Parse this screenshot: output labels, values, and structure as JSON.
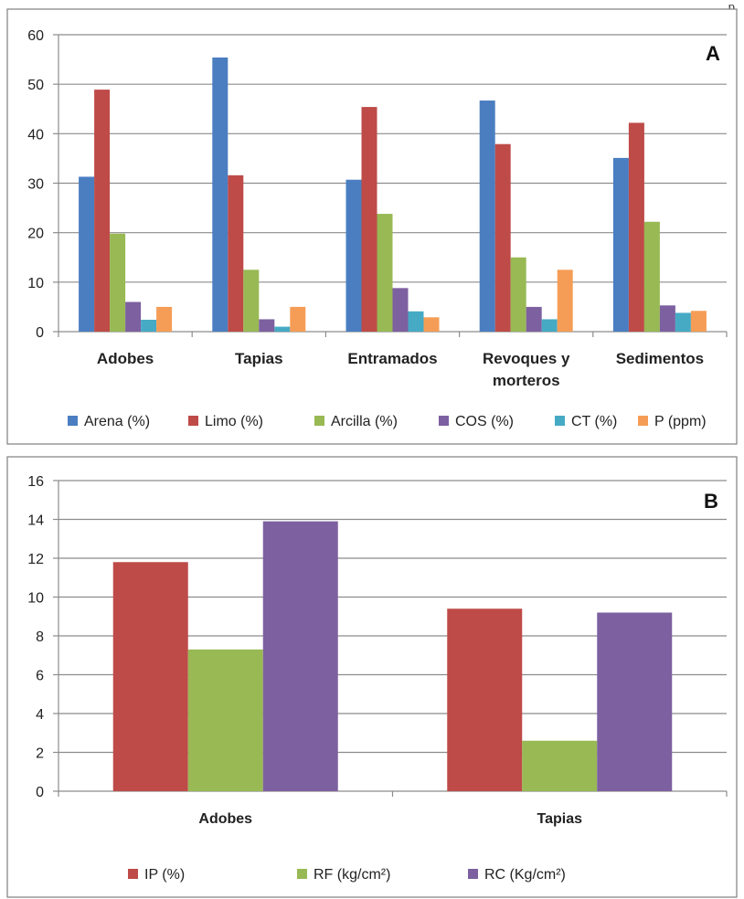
{
  "page_fragment": "p",
  "chart_data": [
    {
      "type": "bar",
      "panel_label": "A",
      "categories": [
        "Adobes",
        "Tapias",
        "Entramados",
        "Revoques y morteros",
        "Sedimentos"
      ],
      "category_lines": [
        [
          "Adobes"
        ],
        [
          "Tapias"
        ],
        [
          "Entramados"
        ],
        [
          "Revoques y",
          "morteros"
        ],
        [
          "Sedimentos"
        ]
      ],
      "series": [
        {
          "name": "Arena (%)",
          "color": "#4A7EC1",
          "values": [
            31.3,
            55.4,
            30.7,
            46.7,
            35.1
          ]
        },
        {
          "name": "Limo (%)",
          "color": "#BE4B48",
          "values": [
            48.9,
            31.6,
            45.4,
            37.9,
            42.2
          ]
        },
        {
          "name": "Arcilla (%)",
          "color": "#98B954",
          "values": [
            19.8,
            12.5,
            23.8,
            15.0,
            22.2
          ]
        },
        {
          "name": "COS (%)",
          "color": "#7D60A0",
          "values": [
            6.0,
            2.5,
            8.8,
            5.0,
            5.3
          ]
        },
        {
          "name": "CT (%)",
          "color": "#46AAC5",
          "values": [
            2.4,
            1.0,
            4.1,
            2.5,
            3.8
          ]
        },
        {
          "name": "P (ppm)",
          "color": "#F59D56",
          "values": [
            5.0,
            5.0,
            2.9,
            12.5,
            4.2
          ]
        }
      ],
      "ylim": [
        0,
        60
      ],
      "yticks": [
        0,
        10,
        20,
        30,
        40,
        50,
        60
      ],
      "grid": true,
      "legend_position": "bottom"
    },
    {
      "type": "bar",
      "panel_label": "B",
      "categories": [
        "Adobes",
        "Tapias"
      ],
      "category_lines": [
        [
          "Adobes"
        ],
        [
          "Tapias"
        ]
      ],
      "series": [
        {
          "name": "IP (%)",
          "color": "#BE4B48",
          "values": [
            11.8,
            9.4
          ]
        },
        {
          "name": "RF (kg/cm²)",
          "color": "#98B954",
          "values": [
            7.3,
            2.6
          ]
        },
        {
          "name": "RC (Kg/cm²)",
          "color": "#7D60A0",
          "values": [
            13.9,
            9.2
          ]
        }
      ],
      "ylim": [
        0,
        16
      ],
      "yticks": [
        0,
        2,
        4,
        6,
        8,
        10,
        12,
        14,
        16
      ],
      "grid": true,
      "legend_position": "bottom"
    }
  ]
}
